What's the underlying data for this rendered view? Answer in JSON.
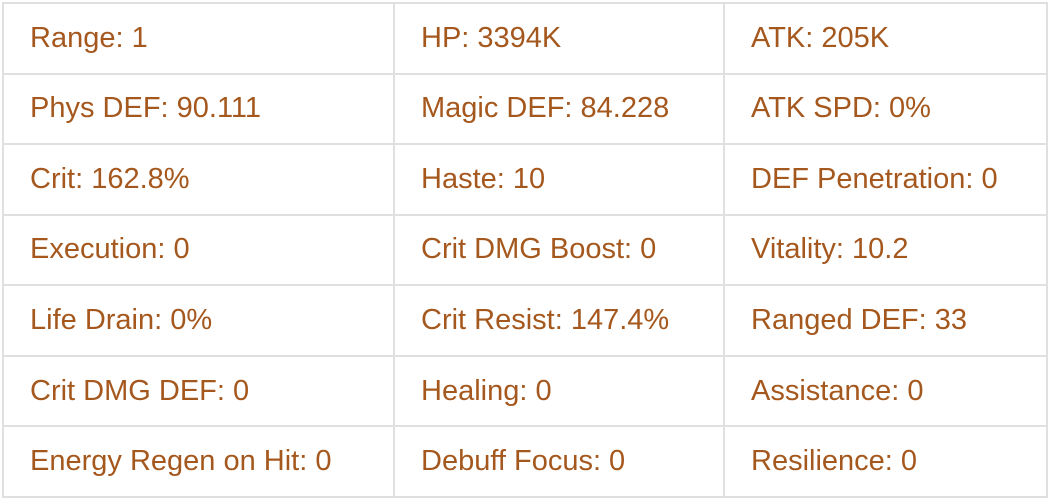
{
  "theme": {
    "text_color": "#a5581e",
    "border_color": "#e0e0e0",
    "background": "#ffffff"
  },
  "stats_table": {
    "rows": [
      {
        "cells": [
          "Range: 1",
          "HP: 3394K",
          "ATK: 205K"
        ]
      },
      {
        "cells": [
          "Phys DEF: 90.111",
          "Magic DEF: 84.228",
          "ATK SPD: 0%"
        ]
      },
      {
        "cells": [
          "Crit: 162.8%",
          "Haste: 10",
          "DEF Penetration: 0"
        ]
      },
      {
        "cells": [
          "Execution: 0",
          "Crit DMG Boost: 0",
          "Vitality: 10.2"
        ]
      },
      {
        "cells": [
          "Life Drain: 0%",
          "Crit Resist: 147.4%",
          "Ranged DEF: 33"
        ]
      },
      {
        "cells": [
          "Crit DMG DEF: 0",
          "Healing: 0",
          "Assistance: 0"
        ]
      },
      {
        "cells": [
          "Energy Regen on Hit: 0",
          "Debuff Focus: 0",
          "Resilience: 0"
        ]
      }
    ]
  }
}
